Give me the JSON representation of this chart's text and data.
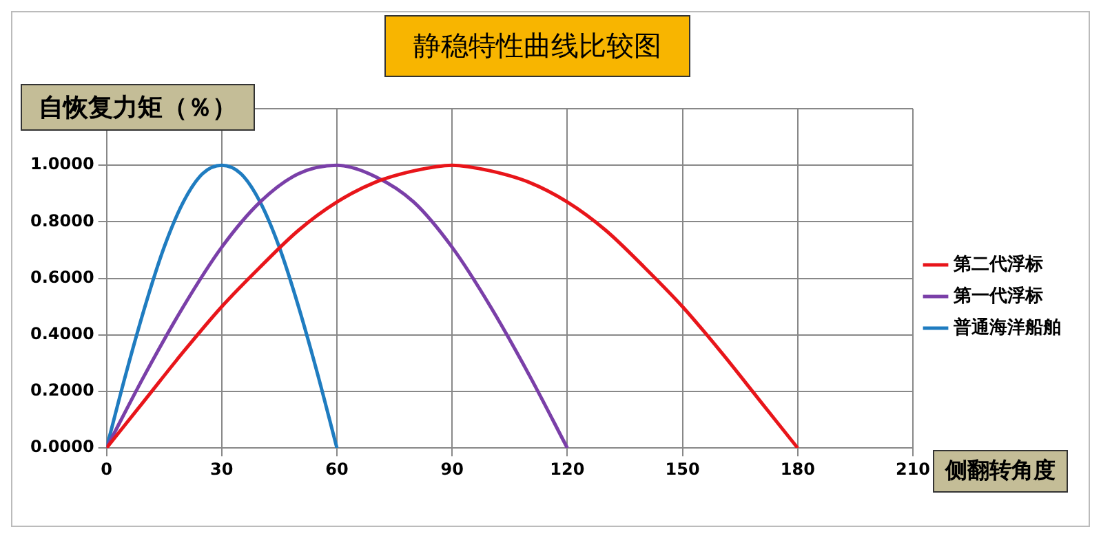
{
  "chart_data": {
    "type": "line",
    "title": "静稳特性曲线比较图",
    "xlabel": "侧翻转角度",
    "ylabel": "自恢复力矩（％）",
    "xlim": [
      0,
      210
    ],
    "xticks": [
      0,
      30,
      60,
      90,
      120,
      150,
      180,
      210
    ],
    "ylim": [
      0,
      1.2
    ],
    "yticks": [
      {
        "value": 0,
        "label": "0.0000"
      },
      {
        "value": 0.2,
        "label": "0.2000"
      },
      {
        "value": 0.4,
        "label": "0.4000"
      },
      {
        "value": 0.6,
        "label": "0.6000"
      },
      {
        "value": 0.8,
        "label": "0.8000"
      },
      {
        "value": 1,
        "label": "1.0000"
      },
      {
        "value": 1.2,
        "label": null
      }
    ],
    "grid": true,
    "legend": "right",
    "marker": "none",
    "line_style": "solid",
    "series": [
      {
        "name": "第二代浮标",
        "color": "#e8151a",
        "x": [
          0,
          10,
          20,
          30,
          40,
          50,
          60,
          70,
          80,
          90,
          100,
          110,
          120,
          130,
          140,
          150,
          160,
          170,
          180
        ],
        "values": [
          0,
          0.17,
          0.34,
          0.5,
          0.64,
          0.77,
          0.87,
          0.94,
          0.98,
          1,
          0.98,
          0.94,
          0.87,
          0.77,
          0.64,
          0.5,
          0.34,
          0.17,
          0
        ]
      },
      {
        "name": "第一代浮标",
        "color": "#7a3fa8",
        "x": [
          0,
          10,
          20,
          30,
          40,
          50,
          60,
          70,
          80,
          90,
          100,
          110,
          120
        ],
        "values": [
          0,
          0.26,
          0.5,
          0.71,
          0.87,
          0.97,
          1,
          0.96,
          0.87,
          0.71,
          0.5,
          0.26,
          0
        ]
      },
      {
        "name": "普通海洋船舶",
        "color": "#1f7cc0",
        "x": [
          0,
          5,
          10,
          15,
          20,
          25,
          30,
          35,
          40,
          45,
          50,
          55,
          60
        ],
        "values": [
          0,
          0.26,
          0.5,
          0.71,
          0.87,
          0.97,
          1,
          0.97,
          0.87,
          0.71,
          0.5,
          0.26,
          0
        ]
      }
    ]
  }
}
